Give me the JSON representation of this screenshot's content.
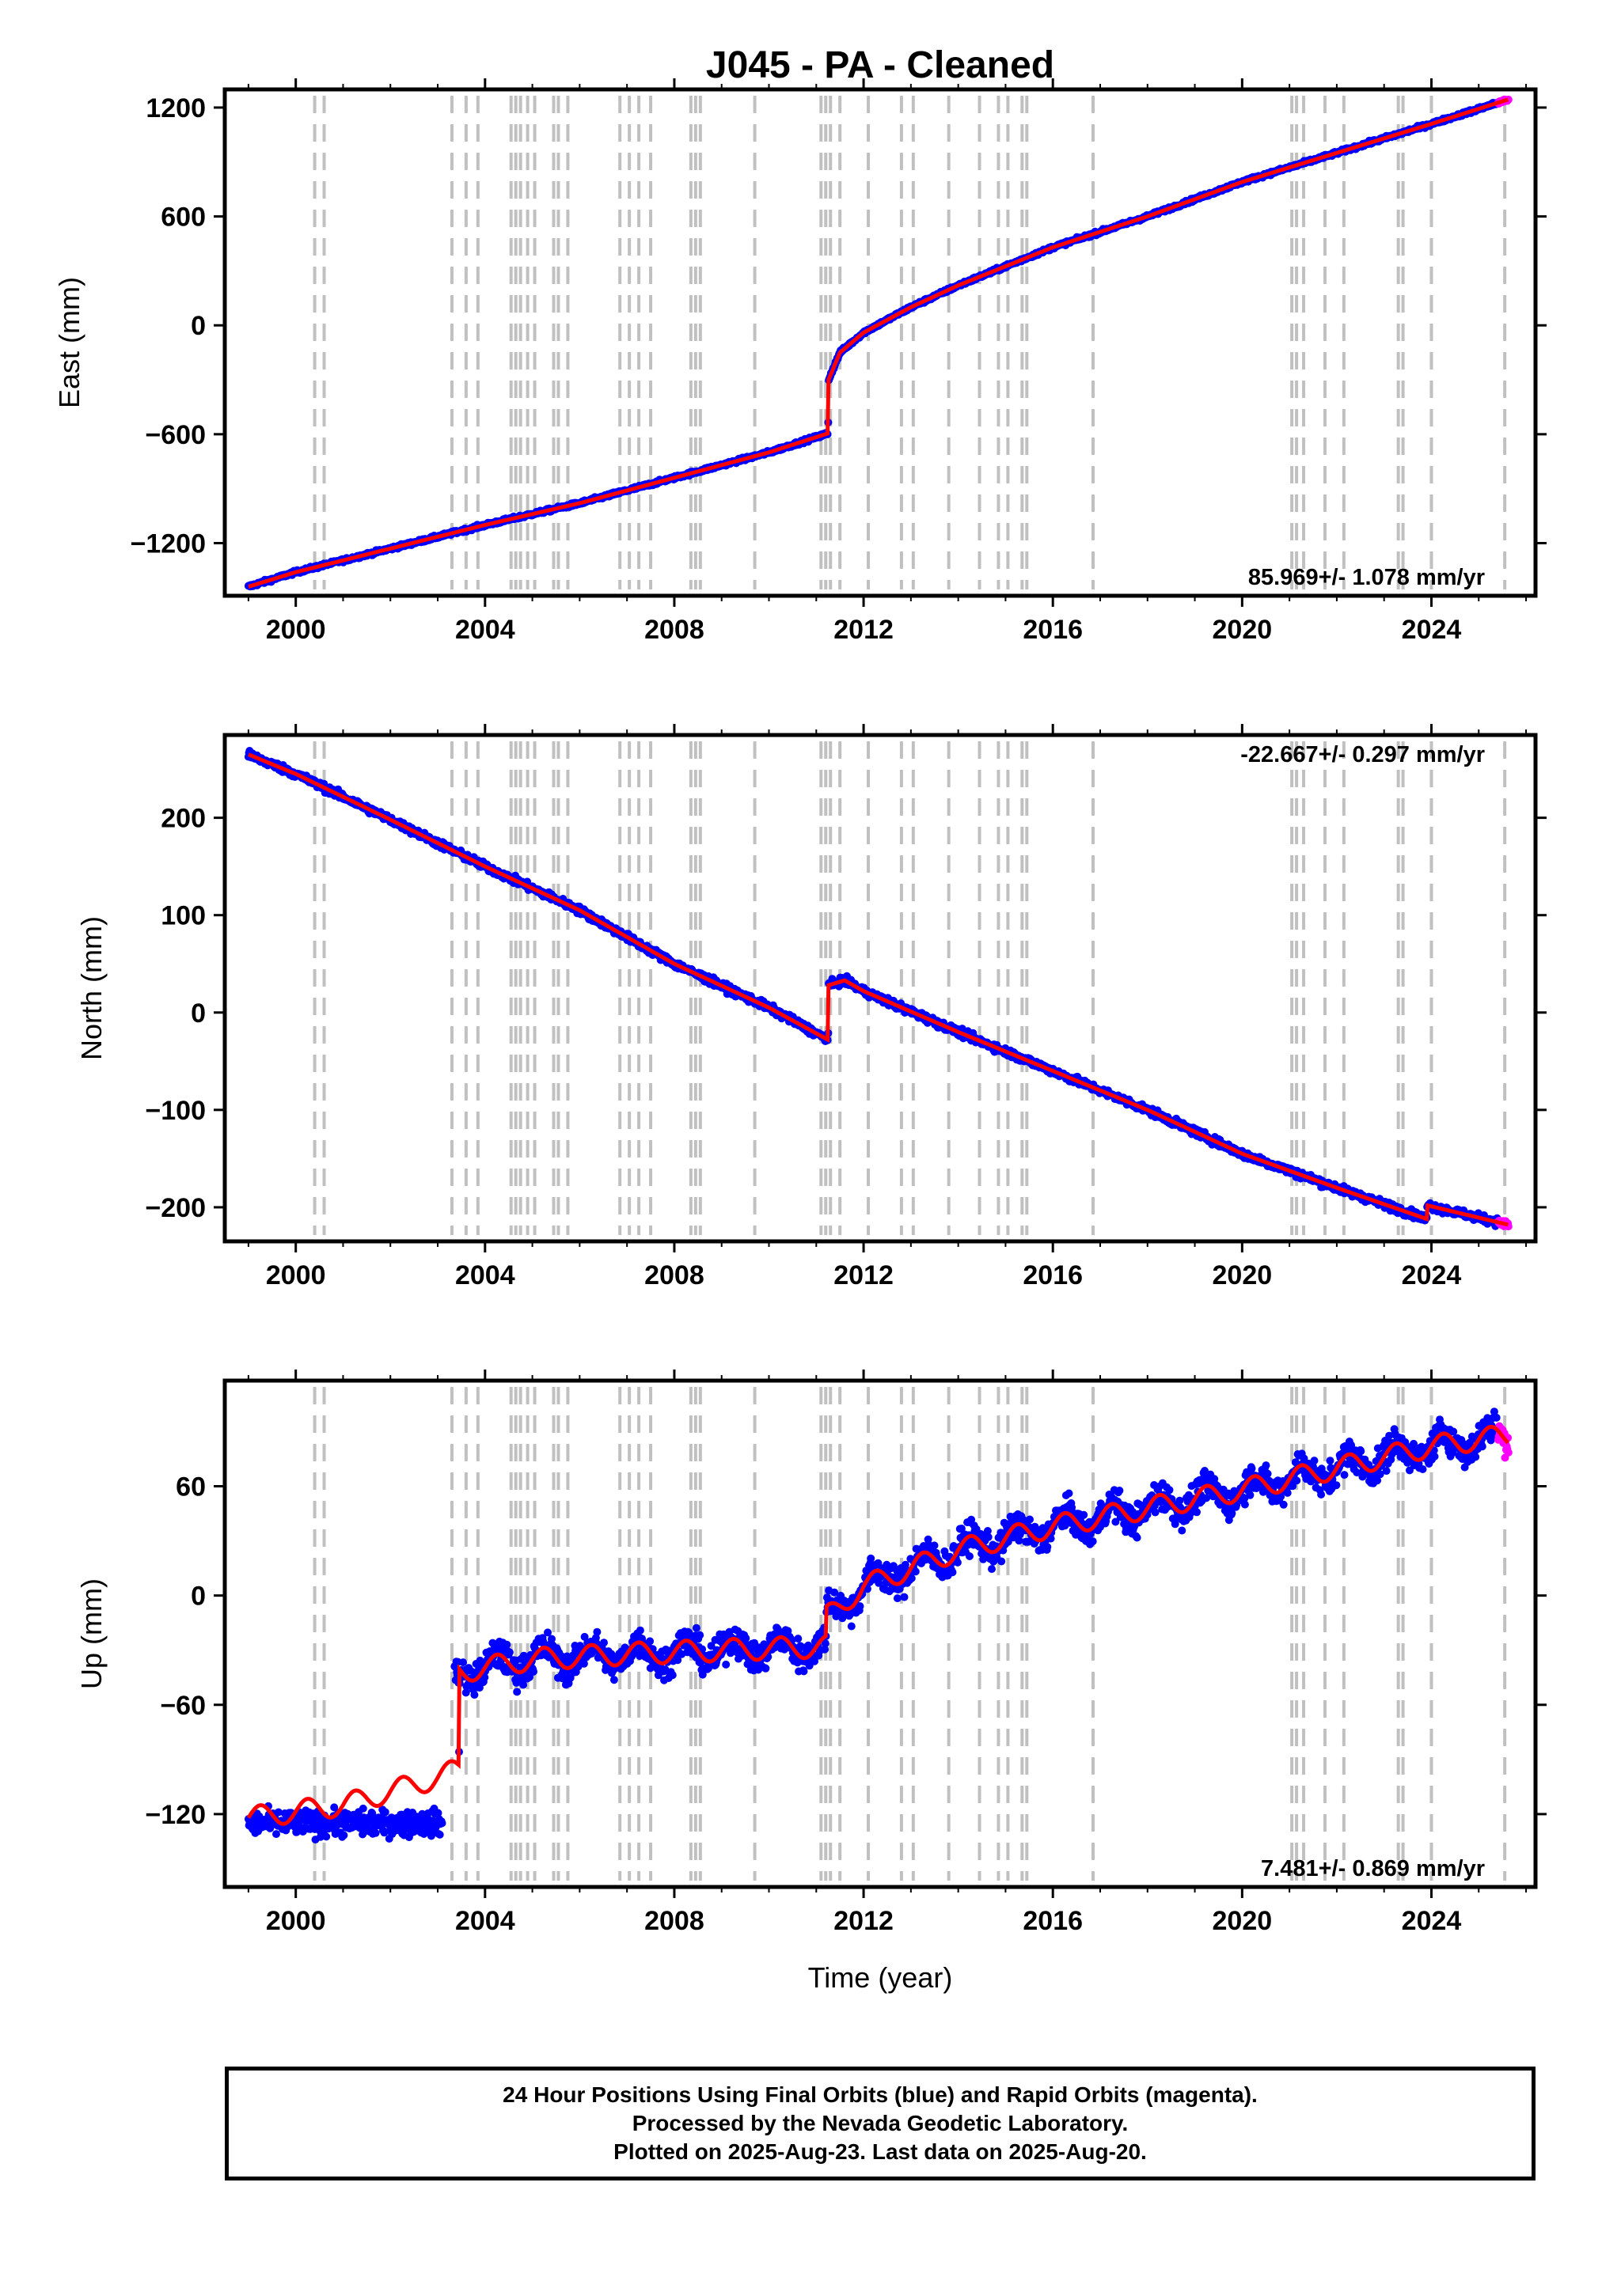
{
  "title": "J045  - PA - Cleaned",
  "xlabel": "Time (year)",
  "colors": {
    "final_orbits": "#0000ff",
    "rapid_orbits": "#ff00ff",
    "model_fit": "#ff0000",
    "event_lines": "#c0c0c0"
  },
  "event_lines_years": [
    2000.4,
    2000.6,
    2003.3,
    2003.6,
    2003.85,
    2004.55,
    2004.65,
    2004.75,
    2004.9,
    2005.05,
    2005.45,
    2005.55,
    2005.75,
    2006.85,
    2007.05,
    2007.25,
    2007.5,
    2008.35,
    2008.45,
    2008.55,
    2009.7,
    2011.1,
    2011.2,
    2011.3,
    2011.5,
    2012.1,
    2012.8,
    2013.05,
    2013.8,
    2014.45,
    2014.85,
    2015.05,
    2015.35,
    2015.45,
    2016.85,
    2021.05,
    2021.15,
    2021.3,
    2021.75,
    2022.15,
    2023.3,
    2023.4,
    2024.0,
    2025.55
  ],
  "chart_data": [
    {
      "type": "scatter",
      "ylabel": "East (mm)",
      "xlim": [
        1998.5,
        2026.2
      ],
      "ylim": [
        -1490,
        1300
      ],
      "xticks": [
        2000,
        2004,
        2008,
        2012,
        2016,
        2020,
        2024
      ],
      "yticks": [
        -1200,
        -600,
        0,
        600,
        1200
      ],
      "ytick_labels": [
        "−1200",
        "−600",
        "0",
        "600",
        "1200"
      ],
      "rate_label": "85.969+/- 1.078 mm/yr",
      "rate_position": "bottom-right",
      "data_span": [
        1999.0,
        2025.63
      ],
      "rapid_span": [
        2025.4,
        2025.63
      ],
      "series": [
        {
          "name": "model_fit",
          "x": [
            1999.0,
            2000.0,
            2002.0,
            2004.0,
            2006.0,
            2008.0,
            2010.0,
            2011.25,
            2011.26,
            2011.5,
            2012.0,
            2013.0,
            2014.0,
            2016.0,
            2018.0,
            2020.0,
            2022.0,
            2024.0,
            2025.63
          ],
          "y": [
            -1440,
            -1360,
            -1230,
            -1100,
            -980,
            -840,
            -700,
            -595,
            -300,
            -150,
            -40,
            100,
            220,
            430,
            600,
            790,
            950,
            1110,
            1245
          ]
        }
      ],
      "scatter_spread": 12
    },
    {
      "type": "scatter",
      "ylabel": "North (mm)",
      "xlim": [
        1998.5,
        2026.2
      ],
      "ylim": [
        -235,
        285
      ],
      "xticks": [
        2000,
        2004,
        2008,
        2012,
        2016,
        2020,
        2024
      ],
      "yticks": [
        -200,
        -100,
        0,
        100,
        200
      ],
      "ytick_labels": [
        "−200",
        "−100",
        "0",
        "100",
        "200"
      ],
      "rate_label": "-22.667+/- 0.297 mm/yr",
      "rate_position": "top-right",
      "data_span": [
        1999.0,
        2025.63
      ],
      "rapid_span": [
        2025.4,
        2025.63
      ],
      "series": [
        {
          "name": "model_fit",
          "x": [
            1999.0,
            2000.0,
            2002.0,
            2004.0,
            2006.0,
            2008.0,
            2010.0,
            2011.25,
            2011.26,
            2011.6,
            2012.0,
            2014.0,
            2016.0,
            2018.0,
            2020.0,
            2022.0,
            2023.9,
            2023.91,
            2025.63
          ],
          "y": [
            265,
            245,
            198,
            150,
            105,
            50,
            5,
            -28,
            28,
            33,
            22,
            -20,
            -60,
            -100,
            -145,
            -180,
            -212,
            -198,
            -218
          ]
        }
      ],
      "scatter_spread": 5
    },
    {
      "type": "scatter",
      "ylabel": "Up (mm)",
      "xlim": [
        1998.5,
        2026.2
      ],
      "ylim": [
        -160,
        118
      ],
      "xticks": [
        2000,
        2004,
        2008,
        2012,
        2016,
        2020,
        2024
      ],
      "yticks": [
        -120,
        -60,
        0,
        60
      ],
      "ytick_labels": [
        "−120",
        "−60",
        "0",
        "60"
      ],
      "rate_label": "7.481+/- 0.869 mm/yr",
      "rate_position": "bottom-right",
      "data_span": [
        1999.0,
        2025.63
      ],
      "rapid_span": [
        2025.4,
        2025.63
      ],
      "gap_span": [
        2003.1,
        2003.35
      ],
      "series": [
        {
          "name": "model_fit",
          "x": [
            1999.0,
            2001.0,
            2003.0,
            2003.45,
            2003.46,
            2005.0,
            2007.0,
            2009.0,
            2011.2,
            2011.21,
            2012.0,
            2014.0,
            2016.0,
            2018.0,
            2020.0,
            2022.0,
            2024.0,
            2025.63
          ],
          "y": [
            -122,
            -115,
            -100,
            -95,
            -42,
            -35,
            -32,
            -30,
            -28,
            -12,
            5,
            25,
            38,
            48,
            58,
            70,
            82,
            88
          ]
        }
      ],
      "seasonal_amplitude": 6,
      "scatter_spread": 11
    }
  ],
  "footer": {
    "line1": "24 Hour Positions Using Final Orbits (blue) and Rapid Orbits (magenta).",
    "line2": "Processed by the Nevada Geodetic Laboratory.",
    "line3": "Plotted on 2025-Aug-23. Last data on 2025-Aug-20."
  }
}
